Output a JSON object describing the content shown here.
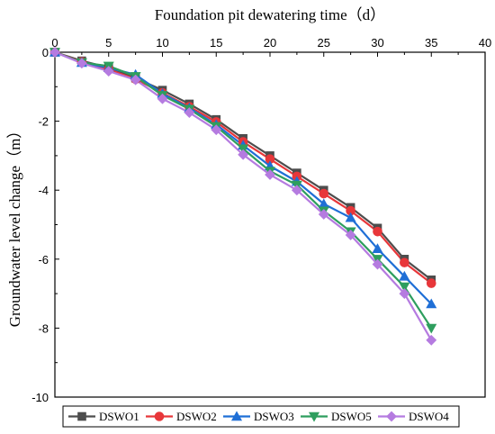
{
  "chart_data": {
    "type": "line",
    "title": "",
    "xlabel": "Foundation pit dewatering time（d）",
    "ylabel": "Groundwater level change（m）",
    "xlim": [
      0,
      40
    ],
    "ylim": [
      -10,
      0
    ],
    "x_ticks": [
      "0",
      "5",
      "10",
      "15",
      "20",
      "25",
      "30",
      "35",
      "40"
    ],
    "y_ticks": [
      "0",
      "-2",
      "-4",
      "-6",
      "-8",
      "-10"
    ],
    "x_axis_position": "top",
    "grid": false,
    "legend_position": "bottom",
    "series": [
      {
        "name": "DSWO1",
        "color": "#4d4d4d",
        "marker": "square",
        "x": [
          0,
          2.5,
          5,
          7.5,
          10,
          12.5,
          15,
          17.5,
          20,
          22.5,
          25,
          27.5,
          30,
          32.5,
          35
        ],
        "y": [
          0,
          -0.25,
          -0.45,
          -0.75,
          -1.1,
          -1.5,
          -1.95,
          -2.5,
          -3.0,
          -3.5,
          -4.0,
          -4.5,
          -5.1,
          -6.0,
          -6.6
        ]
      },
      {
        "name": "DSWO2",
        "color": "#e8373a",
        "marker": "circle",
        "x": [
          0,
          2.5,
          5,
          7.5,
          10,
          12.5,
          15,
          17.5,
          20,
          22.5,
          25,
          27.5,
          30,
          32.5,
          35
        ],
        "y": [
          0,
          -0.28,
          -0.5,
          -0.78,
          -1.18,
          -1.58,
          -2.02,
          -2.6,
          -3.1,
          -3.6,
          -4.1,
          -4.6,
          -5.2,
          -6.1,
          -6.7
        ]
      },
      {
        "name": "DSWO3",
        "color": "#1f6fd6",
        "marker": "triangle-up",
        "x": [
          0,
          2.5,
          5,
          7.5,
          10,
          12.5,
          15,
          17.5,
          20,
          22.5,
          25,
          27.5,
          30,
          32.5,
          35
        ],
        "y": [
          0,
          -0.3,
          -0.45,
          -0.65,
          -1.2,
          -1.62,
          -2.1,
          -2.7,
          -3.3,
          -3.75,
          -4.4,
          -4.8,
          -5.7,
          -6.5,
          -7.3
        ]
      },
      {
        "name": "DSWO5",
        "color": "#2e9e5e",
        "marker": "triangle-down",
        "x": [
          0,
          2.5,
          5,
          7.5,
          10,
          12.5,
          15,
          17.5,
          20,
          22.5,
          25,
          27.5,
          30,
          32.5,
          35
        ],
        "y": [
          0,
          -0.3,
          -0.4,
          -0.7,
          -1.25,
          -1.65,
          -2.15,
          -2.8,
          -3.45,
          -3.85,
          -4.6,
          -5.2,
          -6.0,
          -6.8,
          -8.0
        ]
      },
      {
        "name": "DSWO4",
        "color": "#b57be0",
        "marker": "diamond",
        "x": [
          0,
          2.5,
          5,
          7.5,
          10,
          12.5,
          15,
          17.5,
          20,
          22.5,
          25,
          27.5,
          30,
          32.5,
          35
        ],
        "y": [
          0,
          -0.32,
          -0.55,
          -0.8,
          -1.35,
          -1.75,
          -2.25,
          -2.97,
          -3.55,
          -4.0,
          -4.7,
          -5.3,
          -6.15,
          -7.0,
          -8.35
        ]
      }
    ]
  }
}
